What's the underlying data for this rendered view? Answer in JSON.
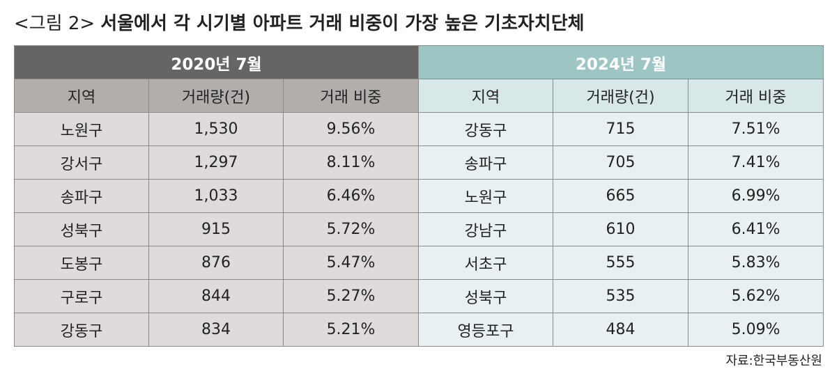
{
  "title": {
    "prefix": "<그림 2>",
    "text": "서울에서 각 시기별 아파트 거래 비중이 가장 높은 기초자치단체"
  },
  "columns": [
    "지역",
    "거래량(건)",
    "거래 비중"
  ],
  "chart_data": {
    "type": "table",
    "tables": [
      {
        "period": "2020년 7월",
        "rows": [
          {
            "region": "노원구",
            "volume": "1,530",
            "share": "9.56%"
          },
          {
            "region": "강서구",
            "volume": "1,297",
            "share": "8.11%"
          },
          {
            "region": "송파구",
            "volume": "1,033",
            "share": "6.46%"
          },
          {
            "region": "성북구",
            "volume": "915",
            "share": "5.72%"
          },
          {
            "region": "도봉구",
            "volume": "876",
            "share": "5.47%"
          },
          {
            "region": "구로구",
            "volume": "844",
            "share": "5.27%"
          },
          {
            "region": "강동구",
            "volume": "834",
            "share": "5.21%"
          }
        ]
      },
      {
        "period": "2024년 7월",
        "rows": [
          {
            "region": "강동구",
            "volume": "715",
            "share": "7.51%"
          },
          {
            "region": "송파구",
            "volume": "705",
            "share": "7.41%"
          },
          {
            "region": "노원구",
            "volume": "665",
            "share": "6.99%"
          },
          {
            "region": "강남구",
            "volume": "610",
            "share": "6.41%"
          },
          {
            "region": "서초구",
            "volume": "555",
            "share": "5.83%"
          },
          {
            "region": "성북구",
            "volume": "535",
            "share": "5.62%"
          },
          {
            "region": "영등포구",
            "volume": "484",
            "share": "5.09%"
          }
        ]
      }
    ]
  },
  "source": "자료:한국부동산원",
  "colors": {
    "left_period_bg": "#676464",
    "right_period_bg": "#9dc5c3",
    "left_header_bg": "#b2aeac",
    "right_header_bg": "#d8e7e8",
    "left_cell_bg": "#dedbda",
    "right_cell_bg": "#e8f0f2"
  }
}
